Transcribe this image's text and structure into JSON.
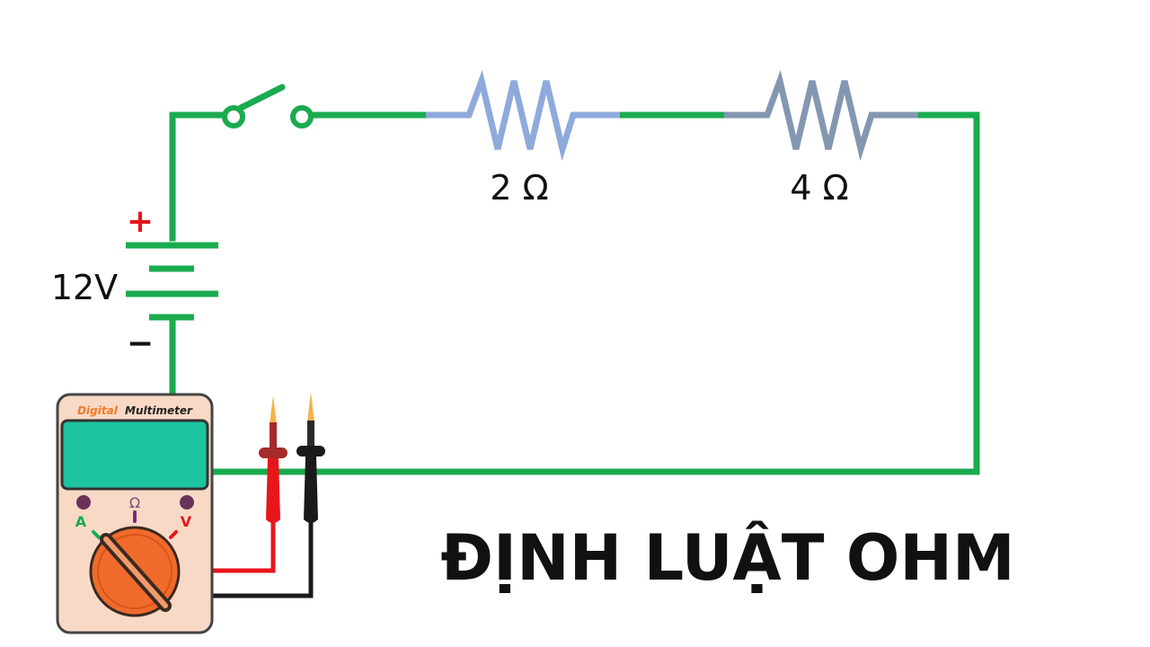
{
  "title": "ĐỊNH LUẬT OHM",
  "battery": {
    "voltage_label": "12V",
    "plus_sign": "+",
    "minus_sign": "−"
  },
  "resistors": [
    {
      "label": "2 Ω",
      "color": "#8eaadb"
    },
    {
      "label": "4 Ω",
      "color": "#8497b0"
    }
  ],
  "multimeter": {
    "brand_word1": "Digital",
    "brand_word2": "Multimeter",
    "mode_a": "A",
    "mode_ohm": "Ω",
    "mode_v": "V"
  },
  "colors": {
    "wire": "#1aab4f",
    "battery_plus": "#e8151b",
    "meter_body": "#f8d9c6",
    "meter_screen": "#1cc4a0",
    "dial": "#f06a2c",
    "probe_red": "#e8151b",
    "probe_black": "#1a1a1a"
  }
}
